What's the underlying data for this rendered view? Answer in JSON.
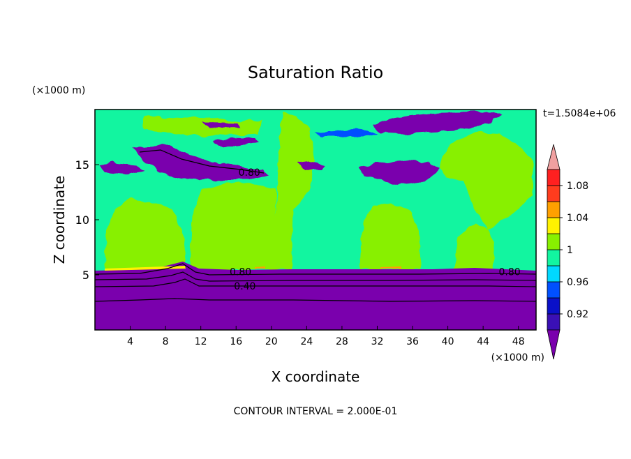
{
  "chart_data": {
    "type": "heatmap",
    "title": "Saturation Ratio",
    "xlabel": "X coordinate",
    "ylabel": "Z coordinate",
    "x_unit": "(×1000 m)",
    "y_unit": "(×1000 m)",
    "time_label": "t=1.5084e+06",
    "footer": "CONTOUR INTERVAL = 2.000E-01",
    "xlim": [
      0,
      50
    ],
    "ylim": [
      0,
      20
    ],
    "x_ticks": [
      4,
      8,
      12,
      16,
      20,
      24,
      28,
      32,
      36,
      40,
      44,
      48
    ],
    "y_ticks": [
      5,
      10,
      15
    ],
    "grid": false,
    "colorbar": {
      "placement": "right",
      "levels": [
        {
          "upper": 0.9,
          "color": "#7a00ad"
        },
        {
          "upper": 0.92,
          "color": "#3a10b5"
        },
        {
          "upper": 0.94,
          "color": "#0a10c8"
        },
        {
          "upper": 0.96,
          "color": "#0050ff"
        },
        {
          "upper": 0.98,
          "color": "#00d8ff"
        },
        {
          "upper": 1.0,
          "color": "#12f5a0"
        },
        {
          "upper": 1.02,
          "color": "#88f000"
        },
        {
          "upper": 1.04,
          "color": "#fff200"
        },
        {
          "upper": 1.06,
          "color": "#ffa000"
        },
        {
          "upper": 1.08,
          "color": "#ff3c1e"
        },
        {
          "upper": 1.1,
          "color": "#ff2020"
        },
        {
          "upper": null,
          "color": "#f0a0a0"
        }
      ],
      "tick_labels": [
        "0.92",
        "0.96",
        "1",
        "1.04",
        "1.08"
      ]
    },
    "contour_labels": [
      {
        "text": "0.80",
        "x": 17.5,
        "z": 14.3
      },
      {
        "text": "0.80",
        "x": 16.5,
        "z": 5.3
      },
      {
        "text": "0.40",
        "x": 17,
        "z": 4.0
      },
      {
        "text": "0.80",
        "x": 47,
        "z": 5.3
      }
    ],
    "regions": {
      "below_5km": "dry (below 0.9)",
      "above_5km_background": "0.98–1.0"
    }
  }
}
